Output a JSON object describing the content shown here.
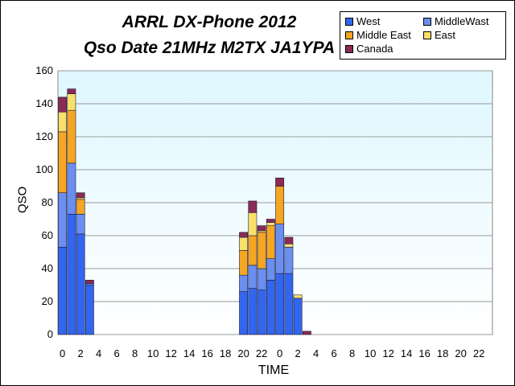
{
  "chart_data": {
    "type": "bar",
    "stacked": true,
    "title": "ARRL DX-Phone 2012",
    "subtitle": "Qso Date 21MHz M2TX JA1YPA",
    "xlabel": "TIME",
    "ylabel": "QSO",
    "ylim": [
      0,
      160
    ],
    "yticks": [
      0,
      20,
      40,
      60,
      80,
      100,
      120,
      140,
      160
    ],
    "categories": [
      "0",
      "1",
      "2",
      "3",
      "4",
      "5",
      "6",
      "7",
      "8",
      "9",
      "10",
      "11",
      "12",
      "13",
      "14",
      "15",
      "16",
      "17",
      "18",
      "19",
      "20",
      "21",
      "22",
      "23",
      "0",
      "1",
      "2",
      "3",
      "4",
      "5",
      "6",
      "7",
      "8",
      "9",
      "10",
      "11",
      "12",
      "13",
      "14",
      "15",
      "16",
      "17",
      "18",
      "19",
      "20",
      "21",
      "22",
      "23"
    ],
    "xtick_labels": [
      "0",
      "2",
      "4",
      "6",
      "8",
      "10",
      "12",
      "14",
      "16",
      "18",
      "20",
      "22",
      "0",
      "2",
      "4",
      "6",
      "8",
      "10",
      "12",
      "14",
      "16",
      "18",
      "20",
      "22"
    ],
    "series": [
      {
        "name": "West",
        "color": "#3366ee",
        "values": [
          53,
          73,
          61,
          30,
          0,
          0,
          0,
          0,
          0,
          0,
          0,
          0,
          0,
          0,
          0,
          0,
          0,
          0,
          0,
          0,
          26,
          28,
          27,
          33,
          37,
          37,
          22,
          0,
          0,
          0,
          0,
          0,
          0,
          0,
          0,
          0,
          0,
          0,
          0,
          0,
          0,
          0,
          0,
          0,
          0,
          0,
          0,
          0
        ]
      },
      {
        "name": "MiddleWast",
        "color": "#6b8ff0",
        "values": [
          33,
          31,
          12,
          1,
          0,
          0,
          0,
          0,
          0,
          0,
          0,
          0,
          0,
          0,
          0,
          0,
          0,
          0,
          0,
          0,
          10,
          14,
          13,
          13,
          30,
          16,
          0,
          0,
          0,
          0,
          0,
          0,
          0,
          0,
          0,
          0,
          0,
          0,
          0,
          0,
          0,
          0,
          0,
          0,
          0,
          0,
          0,
          0
        ]
      },
      {
        "name": "Middle East",
        "color": "#f5a623",
        "values": [
          37,
          32,
          9,
          0,
          0,
          0,
          0,
          0,
          0,
          0,
          0,
          0,
          0,
          0,
          0,
          0,
          0,
          0,
          0,
          0,
          15,
          18,
          22,
          20,
          23,
          0,
          0,
          0,
          0,
          0,
          0,
          0,
          0,
          0,
          0,
          0,
          0,
          0,
          0,
          0,
          0,
          0,
          0,
          0,
          0,
          0,
          0,
          0
        ]
      },
      {
        "name": "East",
        "color": "#f8e06a",
        "values": [
          12,
          10,
          1,
          0,
          0,
          0,
          0,
          0,
          0,
          0,
          0,
          0,
          0,
          0,
          0,
          0,
          0,
          0,
          0,
          0,
          8,
          14,
          1,
          2,
          0,
          2,
          2,
          0,
          0,
          0,
          0,
          0,
          0,
          0,
          0,
          0,
          0,
          0,
          0,
          0,
          0,
          0,
          0,
          0,
          0,
          0,
          0,
          0
        ]
      },
      {
        "name": "Canada",
        "color": "#8b2a55",
        "values": [
          9,
          3,
          3,
          2,
          0,
          0,
          0,
          0,
          0,
          0,
          0,
          0,
          0,
          0,
          0,
          0,
          0,
          0,
          0,
          0,
          3,
          7,
          3,
          2,
          5,
          4,
          0,
          2,
          0,
          0,
          0,
          0,
          0,
          0,
          0,
          0,
          0,
          0,
          0,
          0,
          0,
          0,
          0,
          0,
          0,
          0,
          0,
          0
        ]
      }
    ],
    "grid": true,
    "legend_position": "top-right"
  }
}
